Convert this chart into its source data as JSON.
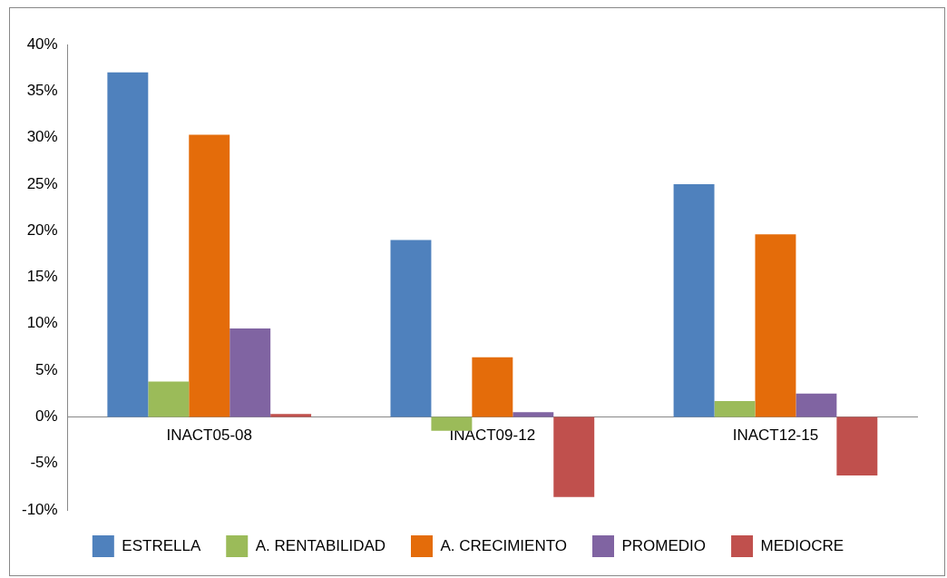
{
  "chart_data": {
    "type": "bar",
    "categories": [
      "INACT05-08",
      "INACT09-12",
      "INACT12-15"
    ],
    "series": [
      {
        "name": "ESTRELLA",
        "color": "#4f81bd",
        "values": [
          37,
          19,
          25
        ]
      },
      {
        "name": "A. RENTABILIDAD",
        "color": "#9bbb59",
        "values": [
          3.8,
          -1.5,
          1.7
        ]
      },
      {
        "name": "A. CRECIMIENTO",
        "color": "#e46c0a",
        "values": [
          30.3,
          6.4,
          19.6
        ]
      },
      {
        "name": "PROMEDIO",
        "color": "#8064a2",
        "values": [
          9.5,
          0.5,
          2.5
        ]
      },
      {
        "name": "MEDIOCRE",
        "color": "#c0504d",
        "values": [
          0.3,
          -8.6,
          -6.3
        ]
      }
    ],
    "ylim": [
      -10,
      40
    ],
    "yticks": [
      {
        "value": -10,
        "label": "-10%"
      },
      {
        "value": -5,
        "label": "-5%"
      },
      {
        "value": 0,
        "label": "0%"
      },
      {
        "value": 5,
        "label": "5%"
      },
      {
        "value": 10,
        "label": "10%"
      },
      {
        "value": 15,
        "label": "15%"
      },
      {
        "value": 20,
        "label": "20%"
      },
      {
        "value": 25,
        "label": "25%"
      },
      {
        "value": 30,
        "label": "30%"
      },
      {
        "value": 35,
        "label": "35%"
      },
      {
        "value": 40,
        "label": "40%"
      }
    ],
    "grid": false,
    "legend": "bottom"
  }
}
